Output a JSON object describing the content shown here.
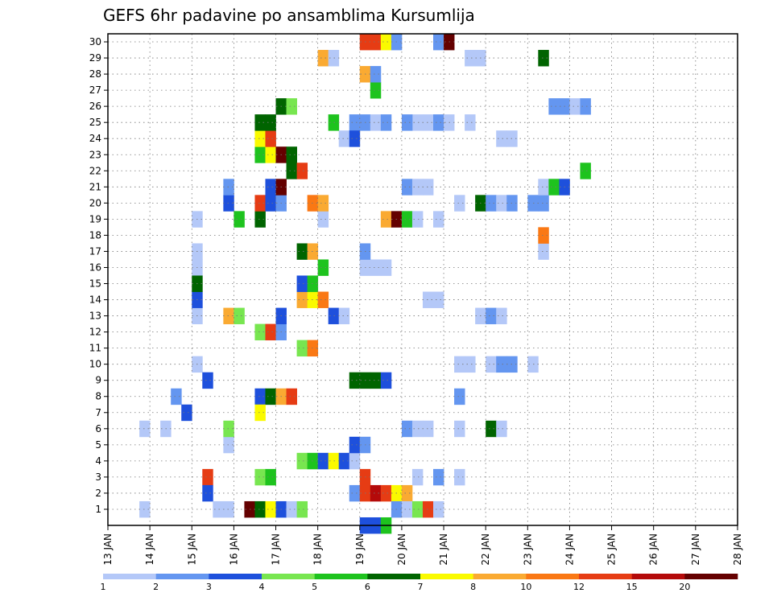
{
  "chart_data": {
    "type": "heatmap",
    "title": "GEFS 6hr padavine po ansamblima Kursumlija",
    "xlabel": "",
    "ylabel": "",
    "y_ticks": [
      "1",
      "2",
      "3",
      "4",
      "5",
      "6",
      "7",
      "8",
      "9",
      "10",
      "11",
      "12",
      "13",
      "14",
      "15",
      "16",
      "17",
      "18",
      "19",
      "20",
      "21",
      "22",
      "23",
      "24",
      "25",
      "26",
      "27",
      "28",
      "29",
      "30"
    ],
    "x_ticks": [
      "13 JAN",
      "14 JAN",
      "15 JAN",
      "16 JAN",
      "17 JAN",
      "18 JAN",
      "19 JAN",
      "20 JAN",
      "21 JAN",
      "22 JAN",
      "23 JAN",
      "24 JAN",
      "25 JAN",
      "26 JAN",
      "27 JAN",
      "28 JAN"
    ],
    "xlim": [
      0,
      60
    ],
    "ylim": [
      0.5,
      30.5
    ],
    "grid": true,
    "colorbar": {
      "labels": [
        "1",
        "2",
        "3",
        "4",
        "5",
        "6",
        "7",
        "8",
        "10",
        "12",
        "15",
        "20"
      ],
      "colors": [
        "#b4c8f8",
        "#6496f0",
        "#1e50dc",
        "#78e650",
        "#1ec31e",
        "#006400",
        "#fafa00",
        "#faaa32",
        "#fa7814",
        "#e63c14",
        "#b40a0a",
        "#640000"
      ]
    },
    "cells": [
      {
        "x": 3,
        "y": 1,
        "level": 0
      },
      {
        "x": 3,
        "y": 6,
        "level": 0
      },
      {
        "x": 5,
        "y": 6,
        "level": 0
      },
      {
        "x": 6,
        "y": 8,
        "level": 1
      },
      {
        "x": 7,
        "y": 7,
        "level": 2
      },
      {
        "x": 8,
        "y": 13,
        "level": 0
      },
      {
        "x": 8,
        "y": 10,
        "level": 0
      },
      {
        "x": 8,
        "y": 16,
        "level": 0
      },
      {
        "x": 8,
        "y": 17,
        "level": 0
      },
      {
        "x": 8,
        "y": 19,
        "level": 0
      },
      {
        "x": 8,
        "y": 14,
        "level": 2
      },
      {
        "x": 8,
        "y": 15,
        "level": 5
      },
      {
        "x": 9,
        "y": 3,
        "level": 9
      },
      {
        "x": 9,
        "y": 2,
        "level": 2
      },
      {
        "x": 9,
        "y": 9,
        "level": 2
      },
      {
        "x": 10,
        "y": 1,
        "level": 0
      },
      {
        "x": 11,
        "y": 1,
        "level": 0
      },
      {
        "x": 11,
        "y": 5,
        "level": 0
      },
      {
        "x": 11,
        "y": 6,
        "level": 3
      },
      {
        "x": 11,
        "y": 13,
        "level": 7
      },
      {
        "x": 12,
        "y": 13,
        "level": 3
      },
      {
        "x": 11,
        "y": 20,
        "level": 2
      },
      {
        "x": 11,
        "y": 21,
        "level": 1
      },
      {
        "x": 12,
        "y": 19,
        "level": 4
      },
      {
        "x": 13,
        "y": 1,
        "level": 11
      },
      {
        "x": 14,
        "y": 1,
        "level": 5
      },
      {
        "x": 15,
        "y": 1,
        "level": 6
      },
      {
        "x": 16,
        "y": 1,
        "level": 2
      },
      {
        "x": 17,
        "y": 1,
        "level": 0
      },
      {
        "x": 18,
        "y": 1,
        "level": 3
      },
      {
        "x": 14,
        "y": 3,
        "level": 3
      },
      {
        "x": 15,
        "y": 3,
        "level": 4
      },
      {
        "x": 14,
        "y": 8,
        "level": 2
      },
      {
        "x": 15,
        "y": 8,
        "level": 5
      },
      {
        "x": 16,
        "y": 8,
        "level": 7
      },
      {
        "x": 17,
        "y": 8,
        "level": 9
      },
      {
        "x": 14,
        "y": 7,
        "level": 6
      },
      {
        "x": 14,
        "y": 12,
        "level": 3
      },
      {
        "x": 15,
        "y": 12,
        "level": 9
      },
      {
        "x": 16,
        "y": 12,
        "level": 1
      },
      {
        "x": 16,
        "y": 13,
        "level": 2
      },
      {
        "x": 14,
        "y": 19,
        "level": 5
      },
      {
        "x": 14,
        "y": 20,
        "level": 9
      },
      {
        "x": 15,
        "y": 20,
        "level": 2
      },
      {
        "x": 16,
        "y": 20,
        "level": 1
      },
      {
        "x": 15,
        "y": 21,
        "level": 2
      },
      {
        "x": 16,
        "y": 21,
        "level": 11
      },
      {
        "x": 14,
        "y": 23,
        "level": 4
      },
      {
        "x": 15,
        "y": 23,
        "level": 6
      },
      {
        "x": 16,
        "y": 23,
        "level": 11
      },
      {
        "x": 17,
        "y": 23,
        "level": 5
      },
      {
        "x": 14,
        "y": 24,
        "level": 6
      },
      {
        "x": 15,
        "y": 24,
        "level": 9
      },
      {
        "x": 14,
        "y": 25,
        "level": 5
      },
      {
        "x": 15,
        "y": 25,
        "level": 5
      },
      {
        "x": 16,
        "y": 26,
        "level": 5
      },
      {
        "x": 17,
        "y": 26,
        "level": 3
      },
      {
        "x": 17,
        "y": 22,
        "level": 5
      },
      {
        "x": 18,
        "y": 22,
        "level": 9
      },
      {
        "x": 18,
        "y": 4,
        "level": 3
      },
      {
        "x": 19,
        "y": 4,
        "level": 4
      },
      {
        "x": 20,
        "y": 4,
        "level": 2
      },
      {
        "x": 21,
        "y": 4,
        "level": 6
      },
      {
        "x": 22,
        "y": 4,
        "level": 2
      },
      {
        "x": 23,
        "y": 4,
        "level": 0
      },
      {
        "x": 18,
        "y": 14,
        "level": 7
      },
      {
        "x": 19,
        "y": 14,
        "level": 6
      },
      {
        "x": 20,
        "y": 14,
        "level": 8
      },
      {
        "x": 18,
        "y": 15,
        "level": 2
      },
      {
        "x": 19,
        "y": 15,
        "level": 4
      },
      {
        "x": 18,
        "y": 17,
        "level": 5
      },
      {
        "x": 19,
        "y": 17,
        "level": 7
      },
      {
        "x": 20,
        "y": 19,
        "level": 0
      },
      {
        "x": 19,
        "y": 20,
        "level": 8
      },
      {
        "x": 20,
        "y": 20,
        "level": 7
      },
      {
        "x": 18,
        "y": 11,
        "level": 3
      },
      {
        "x": 19,
        "y": 11,
        "level": 8
      },
      {
        "x": 21,
        "y": 13,
        "level": 2
      },
      {
        "x": 22,
        "y": 13,
        "level": 0
      },
      {
        "x": 23,
        "y": 9,
        "level": 5
      },
      {
        "x": 24,
        "y": 9,
        "level": 5
      },
      {
        "x": 25,
        "y": 9,
        "level": 5
      },
      {
        "x": 26,
        "y": 9,
        "level": 2
      },
      {
        "x": 23,
        "y": 5,
        "level": 2
      },
      {
        "x": 24,
        "y": 5,
        "level": 1
      },
      {
        "x": 23,
        "y": 2,
        "level": 1
      },
      {
        "x": 24,
        "y": 2,
        "level": 9
      },
      {
        "x": 25,
        "y": 2,
        "level": 10
      },
      {
        "x": 26,
        "y": 2,
        "level": 9
      },
      {
        "x": 27,
        "y": 2,
        "level": 6
      },
      {
        "x": 28,
        "y": 2,
        "level": 7
      },
      {
        "x": 24,
        "y": 3,
        "level": 9
      },
      {
        "x": 24,
        "y": 0,
        "level": 2
      },
      {
        "x": 25,
        "y": 0,
        "level": 2
      },
      {
        "x": 26,
        "y": 0,
        "level": 4
      },
      {
        "x": 27,
        "y": 1,
        "level": 1
      },
      {
        "x": 28,
        "y": 1,
        "level": 0
      },
      {
        "x": 29,
        "y": 1,
        "level": 3
      },
      {
        "x": 30,
        "y": 1,
        "level": 9
      },
      {
        "x": 31,
        "y": 1,
        "level": 0
      },
      {
        "x": 23,
        "y": 25,
        "level": 1
      },
      {
        "x": 24,
        "y": 25,
        "level": 1
      },
      {
        "x": 25,
        "y": 25,
        "level": 0
      },
      {
        "x": 26,
        "y": 25,
        "level": 1
      },
      {
        "x": 22,
        "y": 24,
        "level": 0
      },
      {
        "x": 23,
        "y": 24,
        "level": 2
      },
      {
        "x": 24,
        "y": 30,
        "level": 9
      },
      {
        "x": 25,
        "y": 30,
        "level": 9
      },
      {
        "x": 26,
        "y": 30,
        "level": 6
      },
      {
        "x": 27,
        "y": 30,
        "level": 1
      },
      {
        "x": 31,
        "y": 30,
        "level": 1
      },
      {
        "x": 32,
        "y": 30,
        "level": 11
      },
      {
        "x": 25,
        "y": 27,
        "level": 4
      },
      {
        "x": 24,
        "y": 28,
        "level": 7
      },
      {
        "x": 25,
        "y": 28,
        "level": 1
      },
      {
        "x": 20,
        "y": 29,
        "level": 7
      },
      {
        "x": 21,
        "y": 29,
        "level": 0
      },
      {
        "x": 21,
        "y": 25,
        "level": 4
      },
      {
        "x": 20,
        "y": 16,
        "level": 4
      },
      {
        "x": 24,
        "y": 16,
        "level": 0
      },
      {
        "x": 25,
        "y": 16,
        "level": 0
      },
      {
        "x": 24,
        "y": 17,
        "level": 1
      },
      {
        "x": 26,
        "y": 16,
        "level": 0
      },
      {
        "x": 26,
        "y": 19,
        "level": 7
      },
      {
        "x": 27,
        "y": 19,
        "level": 11
      },
      {
        "x": 28,
        "y": 19,
        "level": 4
      },
      {
        "x": 29,
        "y": 19,
        "level": 0
      },
      {
        "x": 31,
        "y": 19,
        "level": 0
      },
      {
        "x": 28,
        "y": 21,
        "level": 1
      },
      {
        "x": 29,
        "y": 21,
        "level": 0
      },
      {
        "x": 30,
        "y": 21,
        "level": 0
      },
      {
        "x": 33,
        "y": 10,
        "level": 0
      },
      {
        "x": 34,
        "y": 10,
        "level": 0
      },
      {
        "x": 36,
        "y": 10,
        "level": 0
      },
      {
        "x": 37,
        "y": 10,
        "level": 1
      },
      {
        "x": 38,
        "y": 10,
        "level": 1
      },
      {
        "x": 40,
        "y": 10,
        "level": 0
      },
      {
        "x": 33,
        "y": 20,
        "level": 0
      },
      {
        "x": 35,
        "y": 20,
        "level": 5
      },
      {
        "x": 36,
        "y": 20,
        "level": 1
      },
      {
        "x": 37,
        "y": 20,
        "level": 0
      },
      {
        "x": 38,
        "y": 20,
        "level": 1
      },
      {
        "x": 40,
        "y": 20,
        "level": 1
      },
      {
        "x": 41,
        "y": 20,
        "level": 1
      },
      {
        "x": 36,
        "y": 6,
        "level": 5
      },
      {
        "x": 37,
        "y": 6,
        "level": 0
      },
      {
        "x": 33,
        "y": 8,
        "level": 1
      },
      {
        "x": 35,
        "y": 13,
        "level": 0
      },
      {
        "x": 36,
        "y": 13,
        "level": 1
      },
      {
        "x": 37,
        "y": 13,
        "level": 0
      },
      {
        "x": 30,
        "y": 14,
        "level": 0
      },
      {
        "x": 31,
        "y": 14,
        "level": 0
      },
      {
        "x": 28,
        "y": 6,
        "level": 1
      },
      {
        "x": 29,
        "y": 6,
        "level": 0
      },
      {
        "x": 30,
        "y": 6,
        "level": 0
      },
      {
        "x": 33,
        "y": 6,
        "level": 0
      },
      {
        "x": 31,
        "y": 3,
        "level": 1
      },
      {
        "x": 29,
        "y": 3,
        "level": 0
      },
      {
        "x": 33,
        "y": 3,
        "level": 0
      },
      {
        "x": 29,
        "y": 25,
        "level": 0
      },
      {
        "x": 30,
        "y": 25,
        "level": 0
      },
      {
        "x": 31,
        "y": 25,
        "level": 1
      },
      {
        "x": 32,
        "y": 25,
        "level": 0
      },
      {
        "x": 34,
        "y": 25,
        "level": 0
      },
      {
        "x": 28,
        "y": 25,
        "level": 1
      },
      {
        "x": 37,
        "y": 24,
        "level": 0
      },
      {
        "x": 38,
        "y": 24,
        "level": 0
      },
      {
        "x": 34,
        "y": 29,
        "level": 0
      },
      {
        "x": 35,
        "y": 29,
        "level": 0
      },
      {
        "x": 41,
        "y": 29,
        "level": 5
      },
      {
        "x": 41,
        "y": 17,
        "level": 0
      },
      {
        "x": 41,
        "y": 18,
        "level": 8
      },
      {
        "x": 41,
        "y": 21,
        "level": 0
      },
      {
        "x": 42,
        "y": 21,
        "level": 4
      },
      {
        "x": 43,
        "y": 21,
        "level": 2
      },
      {
        "x": 42,
        "y": 26,
        "level": 1
      },
      {
        "x": 43,
        "y": 26,
        "level": 1
      },
      {
        "x": 44,
        "y": 26,
        "level": 0
      },
      {
        "x": 45,
        "y": 26,
        "level": 1
      },
      {
        "x": 45,
        "y": 22,
        "level": 4
      }
    ]
  }
}
